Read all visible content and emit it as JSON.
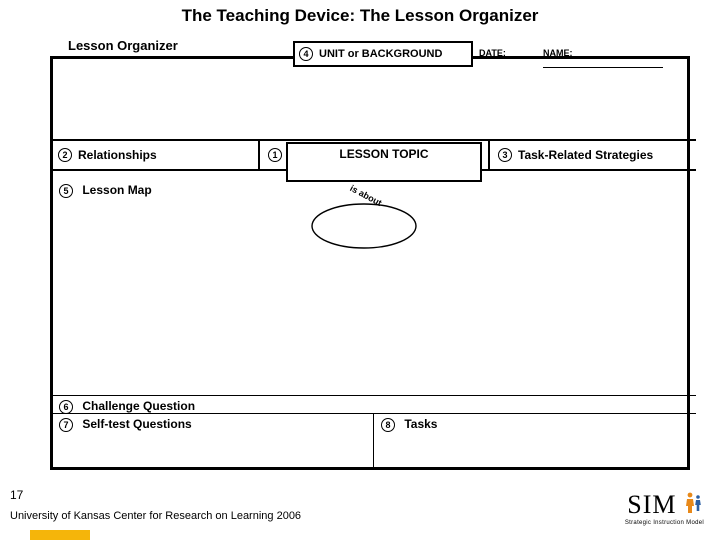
{
  "title": "The Teaching Device:  The Lesson Organizer",
  "subtitle": "Lesson Organizer",
  "labels": {
    "unit": "UNIT  or  BACKGROUND",
    "date": "DATE:",
    "name": "NAME:",
    "relationships": "Relationships",
    "lesson_topic": "LESSON TOPIC",
    "strategies": "Task-Related  Strategies",
    "lesson_map": "Lesson Map",
    "is_about": "is  about",
    "challenge": "Challenge Question",
    "selftest": "Self-test Questions",
    "tasks": "Tasks"
  },
  "numbers": {
    "n1": "1",
    "n2": "2",
    "n3": "3",
    "n4": "4",
    "n5": "5",
    "n6": "6",
    "n7": "7",
    "n8": "8"
  },
  "slide_number": "17",
  "footer": "University of Kansas Center for Research on Learning  2006",
  "logo": {
    "text": "SIM",
    "sub": "Strategic Instruction Model"
  },
  "colors": {
    "accent_orange": "#f5b50a",
    "fig_orange": "#e8891a",
    "fig_blue": "#2b5fa3"
  },
  "underline_widths": {
    "date": 42,
    "name": 120
  }
}
